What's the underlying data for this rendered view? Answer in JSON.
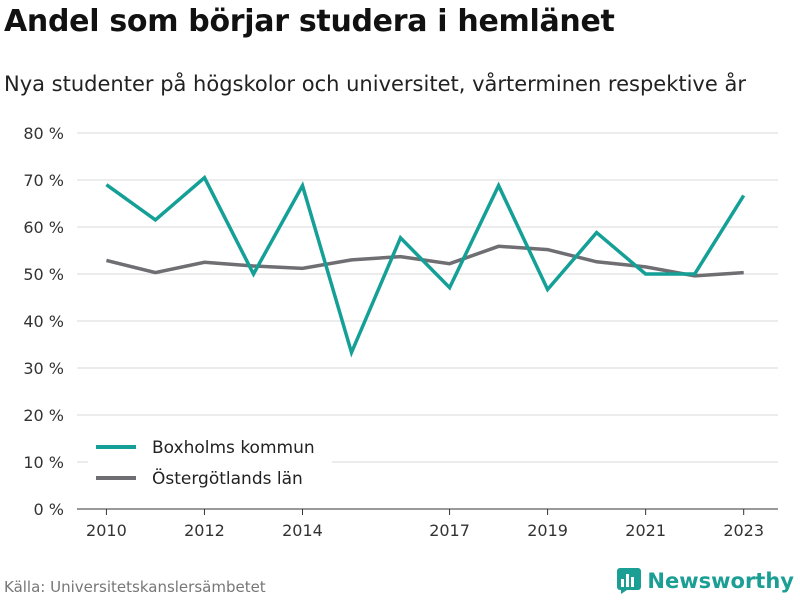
{
  "header": {
    "title": "Andel som börjar studera i hemlänet",
    "subtitle": "Nya studenter på högskolor och universitet, vårterminen respektive år"
  },
  "footer": {
    "source": "Källa: Universitetskanslersämbetet",
    "brand": "Newsworthy",
    "brand_icon": "bar-chart-logo-icon"
  },
  "colors": {
    "boxholm": "#14a096",
    "ostergotland": "#6e6e73",
    "brand": "#1b9e94",
    "grid": "#d9d9d9"
  },
  "chart_data": {
    "type": "line",
    "title": "Andel som börjar studera i hemlänet",
    "subtitle": "Nya studenter på högskolor och universitet, vårterminen respektive år",
    "x": [
      2010,
      2011,
      2012,
      2013,
      2014,
      2015,
      2016,
      2017,
      2018,
      2019,
      2020,
      2021,
      2022,
      2023
    ],
    "xticks": [
      2010,
      2012,
      2014,
      2017,
      2019,
      2021,
      2023
    ],
    "yticks": [
      0,
      10,
      20,
      30,
      40,
      50,
      60,
      70,
      80
    ],
    "ytick_labels": [
      "0 %",
      "10 %",
      "20 %",
      "30 %",
      "40 %",
      "50 %",
      "60 %",
      "70 %",
      "80 %"
    ],
    "ylim": [
      0,
      80
    ],
    "xlim": [
      2009.4,
      2023.7
    ],
    "grid": true,
    "legend_position": "bottom-left",
    "series": [
      {
        "name": "Boxholms kommun",
        "color": "#14a096",
        "values": [
          69,
          61.5,
          70.5,
          50,
          68.8,
          33.3,
          57.7,
          47.1,
          68.8,
          46.7,
          58.8,
          50,
          50,
          66.7
        ]
      },
      {
        "name": "Östergötlands län",
        "color": "#6e6e73",
        "values": [
          52.9,
          50.3,
          52.5,
          51.7,
          51.2,
          53,
          53.7,
          52.2,
          55.9,
          55.2,
          52.6,
          51.5,
          49.6,
          50.3
        ]
      }
    ]
  }
}
